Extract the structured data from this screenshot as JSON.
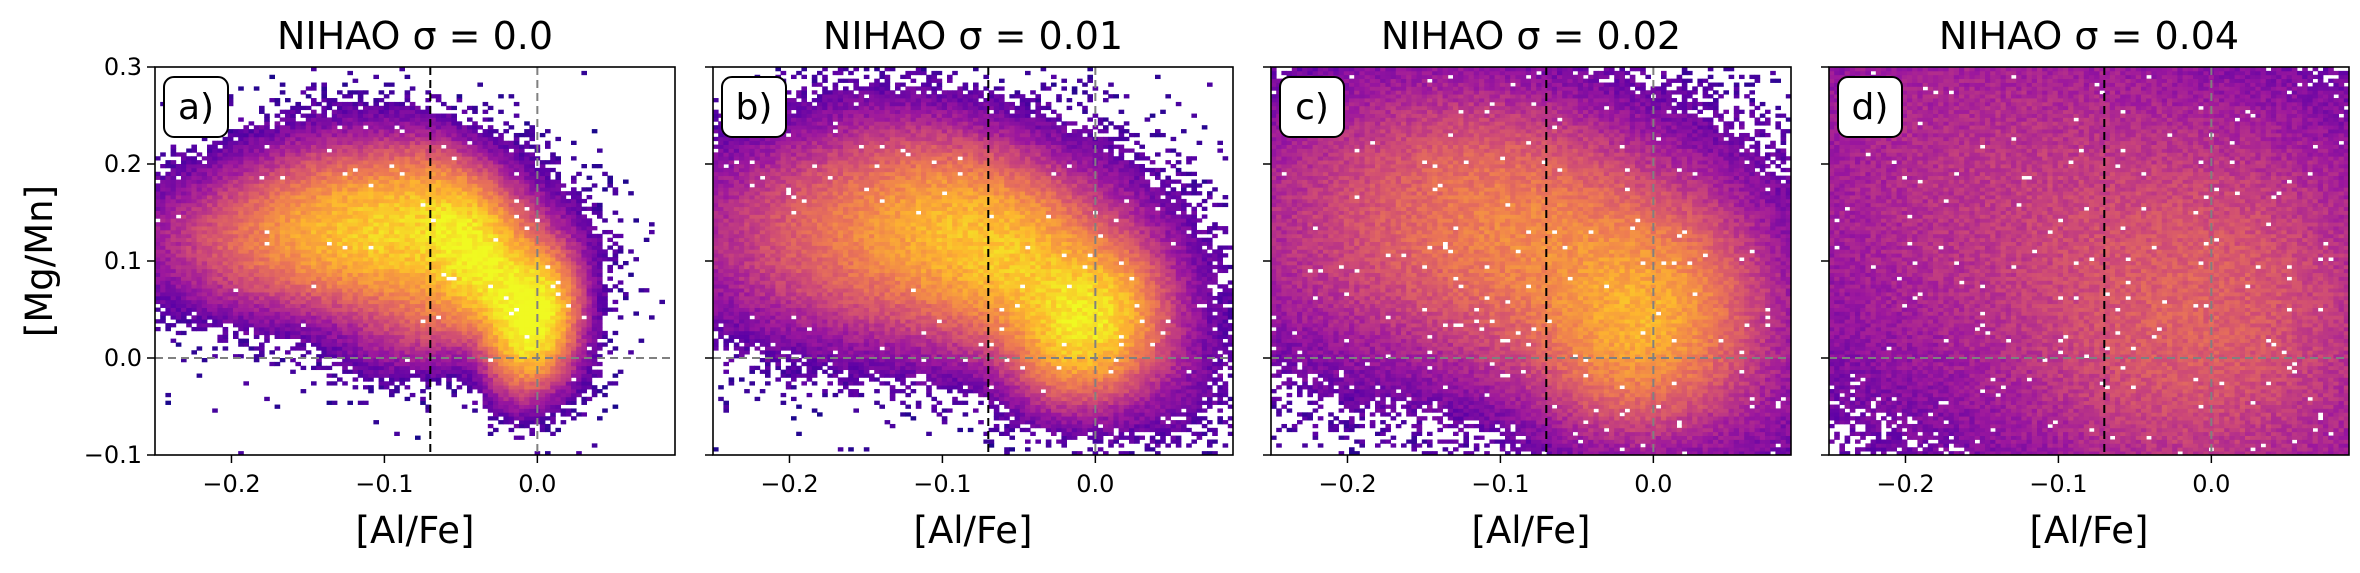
{
  "chart_data": [
    {
      "type": "heatmap",
      "panel_label": "a)",
      "title": "NIHAO σ = 0.0",
      "sigma": 0.0,
      "xlabel": "[Al/Fe]",
      "ylabel": "[Mg/Mn]",
      "xlim": [
        -0.25,
        0.09
      ],
      "ylim": [
        -0.1,
        0.3
      ],
      "xticks": [
        "−0.2",
        "−0.1",
        "0.0"
      ],
      "yticks": [
        "−0.1",
        "0.0",
        "0.1",
        "0.2",
        "0.3"
      ],
      "colormap": "plasma (log density)",
      "reference_lines": {
        "black_dashed_x": -0.07,
        "gray_dashed_x": 0.0,
        "gray_dashed_y": 0.0
      },
      "density_peaks": [
        {
          "x": 0.0,
          "y": 0.04,
          "level": "highest"
        },
        {
          "x": -0.09,
          "y": 0.13,
          "level": "high"
        }
      ]
    },
    {
      "type": "heatmap",
      "panel_label": "b)",
      "title": "NIHAO σ = 0.01",
      "sigma": 0.01,
      "xlabel": "[Al/Fe]",
      "xlim": [
        -0.25,
        0.09
      ],
      "ylim": [
        -0.1,
        0.3
      ],
      "xticks": [
        "−0.2",
        "−0.1",
        "0.0"
      ],
      "colormap": "plasma (log density)",
      "reference_lines": {
        "black_dashed_x": -0.07,
        "gray_dashed_x": 0.0,
        "gray_dashed_y": 0.0
      },
      "density_peaks": [
        {
          "x": 0.0,
          "y": 0.03,
          "level": "highest"
        },
        {
          "x": -0.08,
          "y": 0.11,
          "level": "high"
        }
      ]
    },
    {
      "type": "heatmap",
      "panel_label": "c)",
      "title": "NIHAO σ = 0.02",
      "sigma": 0.02,
      "xlabel": "[Al/Fe]",
      "xlim": [
        -0.25,
        0.09
      ],
      "ylim": [
        -0.1,
        0.3
      ],
      "xticks": [
        "−0.2",
        "−0.1",
        "0.0"
      ],
      "colormap": "plasma (log density)",
      "reference_lines": {
        "black_dashed_x": -0.07,
        "gray_dashed_x": 0.0,
        "gray_dashed_y": 0.0
      },
      "density_peaks": [
        {
          "x": -0.01,
          "y": 0.03,
          "level": "highest"
        },
        {
          "x": -0.08,
          "y": 0.1,
          "level": "medium"
        }
      ]
    },
    {
      "type": "heatmap",
      "panel_label": "d)",
      "title": "NIHAO σ = 0.04",
      "sigma": 0.04,
      "xlabel": "[Al/Fe]",
      "xlim": [
        -0.25,
        0.09
      ],
      "ylim": [
        -0.1,
        0.3
      ],
      "xticks": [
        "−0.2",
        "−0.1",
        "0.0"
      ],
      "colormap": "plasma (log density)",
      "reference_lines": {
        "black_dashed_x": -0.07,
        "gray_dashed_x": 0.0,
        "gray_dashed_y": 0.0
      },
      "density_peaks": [
        {
          "x": -0.01,
          "y": 0.04,
          "level": "highest"
        },
        {
          "x": -0.07,
          "y": 0.1,
          "level": "medium"
        }
      ]
    }
  ],
  "colors": {
    "colormap_stops": [
      "#0d0887",
      "#5c01a6",
      "#9c179e",
      "#cc4778",
      "#ed7953",
      "#fdb42f",
      "#f0f921"
    ],
    "black_line": "#000000",
    "gray_line": "#808080"
  }
}
